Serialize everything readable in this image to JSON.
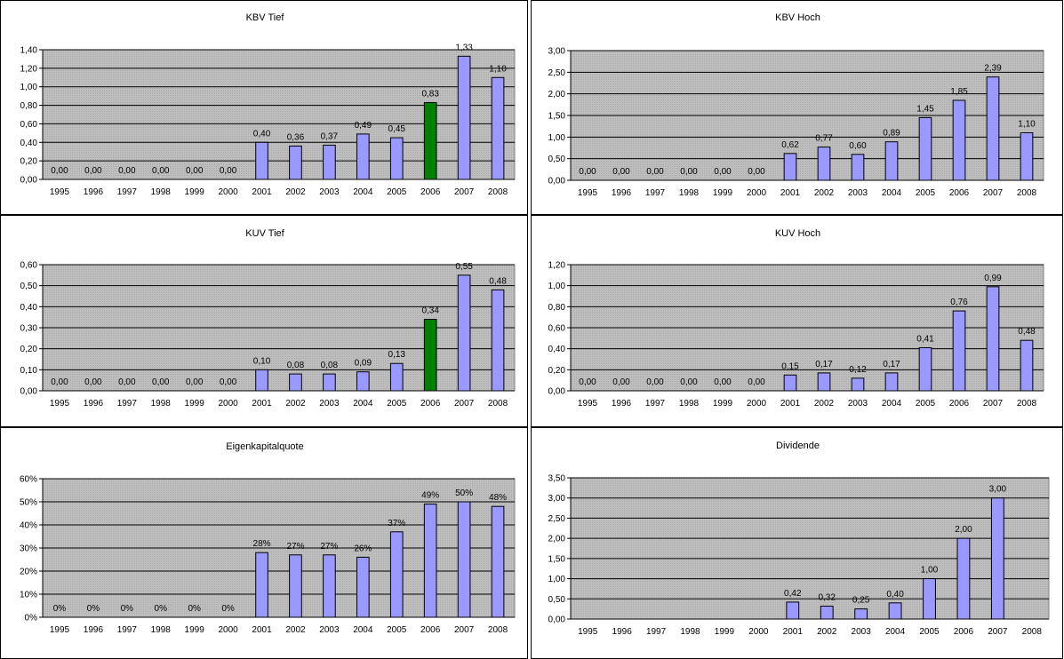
{
  "colors": {
    "bar": "#9999ff",
    "highlight": "#008000",
    "plot_bg": "#c0c0c0",
    "grid": "#000000"
  },
  "chart_data": [
    {
      "type": "bar",
      "title": "KBV Tief",
      "categories": [
        "1995",
        "1996",
        "1997",
        "1998",
        "1999",
        "2000",
        "2001",
        "2002",
        "2003",
        "2004",
        "2005",
        "2006",
        "2007",
        "2008"
      ],
      "values": [
        0,
        0,
        0,
        0,
        0,
        0,
        0.4,
        0.36,
        0.37,
        0.49,
        0.45,
        0.83,
        1.33,
        1.1
      ],
      "labels": [
        "0,00",
        "0,00",
        "0,00",
        "0,00",
        "0,00",
        "0,00",
        "0,40",
        "0,36",
        "0,37",
        "0,49",
        "0,45",
        "0,83",
        "1,33",
        "1,10"
      ],
      "highlight_index": 11,
      "ylim": [
        0,
        1.4
      ],
      "yticks": [
        "0,00",
        "0,20",
        "0,40",
        "0,60",
        "0,80",
        "1,00",
        "1,20",
        "1,40"
      ],
      "xlabel": "",
      "ylabel": "",
      "grid": true
    },
    {
      "type": "bar",
      "title": "KBV Hoch",
      "categories": [
        "1995",
        "1996",
        "1997",
        "1998",
        "1999",
        "2000",
        "2001",
        "2002",
        "2003",
        "2004",
        "2005",
        "2006",
        "2007",
        "2008"
      ],
      "values": [
        0,
        0,
        0,
        0,
        0,
        0,
        0.62,
        0.77,
        0.6,
        0.89,
        1.45,
        1.85,
        2.39,
        1.1
      ],
      "labels": [
        "0,00",
        "0,00",
        "0,00",
        "0,00",
        "0,00",
        "0,00",
        "0,62",
        "0,77",
        "0,60",
        "0,89",
        "1,45",
        "1,85",
        "2,39",
        "1,10"
      ],
      "highlight_index": -1,
      "ylim": [
        0,
        3
      ],
      "yticks": [
        "0,00",
        "0,50",
        "1,00",
        "1,50",
        "2,00",
        "2,50",
        "3,00"
      ],
      "xlabel": "",
      "ylabel": "",
      "grid": true
    },
    {
      "type": "bar",
      "title": "KUV Tief",
      "categories": [
        "1995",
        "1996",
        "1997",
        "1998",
        "1999",
        "2000",
        "2001",
        "2002",
        "2003",
        "2004",
        "2005",
        "2006",
        "2007",
        "2008"
      ],
      "values": [
        0,
        0,
        0,
        0,
        0,
        0,
        0.1,
        0.08,
        0.08,
        0.09,
        0.13,
        0.34,
        0.55,
        0.48
      ],
      "labels": [
        "0,00",
        "0,00",
        "0,00",
        "0,00",
        "0,00",
        "0,00",
        "0,10",
        "0,08",
        "0,08",
        "0,09",
        "0,13",
        "0,34",
        "0,55",
        "0,48"
      ],
      "highlight_index": 11,
      "ylim": [
        0,
        0.6
      ],
      "yticks": [
        "0,00",
        "0,10",
        "0,20",
        "0,30",
        "0,40",
        "0,50",
        "0,60"
      ],
      "xlabel": "",
      "ylabel": "",
      "grid": true
    },
    {
      "type": "bar",
      "title": "KUV Hoch",
      "categories": [
        "1995",
        "1996",
        "1997",
        "1998",
        "1999",
        "2000",
        "2001",
        "2002",
        "2003",
        "2004",
        "2005",
        "2006",
        "2007",
        "2008"
      ],
      "values": [
        0,
        0,
        0,
        0,
        0,
        0,
        0.15,
        0.17,
        0.12,
        0.17,
        0.41,
        0.76,
        0.99,
        0.48
      ],
      "labels": [
        "0,00",
        "0,00",
        "0,00",
        "0,00",
        "0,00",
        "0,00",
        "0,15",
        "0,17",
        "0,12",
        "0,17",
        "0,41",
        "0,76",
        "0,99",
        "0,48"
      ],
      "highlight_index": -1,
      "ylim": [
        0,
        1.2
      ],
      "yticks": [
        "0,00",
        "0,20",
        "0,40",
        "0,60",
        "0,80",
        "1,00",
        "1,20"
      ],
      "xlabel": "",
      "ylabel": "",
      "grid": true
    },
    {
      "type": "bar",
      "title": "Eigenkapitalquote",
      "categories": [
        "1995",
        "1996",
        "1997",
        "1998",
        "1999",
        "2000",
        "2001",
        "2002",
        "2003",
        "2004",
        "2005",
        "2006",
        "2007",
        "2008"
      ],
      "values": [
        0,
        0,
        0,
        0,
        0,
        0,
        28,
        27,
        27,
        26,
        37,
        49,
        50,
        48
      ],
      "labels": [
        "0%",
        "0%",
        "0%",
        "0%",
        "0%",
        "0%",
        "28%",
        "27%",
        "27%",
        "26%",
        "37%",
        "49%",
        "50%",
        "48%"
      ],
      "highlight_index": -1,
      "ylim": [
        0,
        60
      ],
      "yticks": [
        "0%",
        "10%",
        "20%",
        "30%",
        "40%",
        "50%",
        "60%"
      ],
      "xlabel": "",
      "ylabel": "",
      "grid": true
    },
    {
      "type": "bar",
      "title": "Dividende",
      "categories": [
        "1995",
        "1996",
        "1997",
        "1998",
        "1999",
        "2000",
        "2001",
        "2002",
        "2003",
        "2004",
        "2005",
        "2006",
        "2007",
        "2008"
      ],
      "values": [
        null,
        null,
        null,
        null,
        null,
        null,
        0.42,
        0.32,
        0.25,
        0.4,
        1.0,
        2.0,
        3.0,
        null
      ],
      "labels": [
        "",
        "",
        "",
        "",
        "",
        "",
        "0,42",
        "0,32",
        "0,25",
        "0,40",
        "1,00",
        "2,00",
        "3,00",
        ""
      ],
      "highlight_index": -1,
      "ylim": [
        0,
        3.5
      ],
      "yticks": [
        "0,00",
        "0,50",
        "1,00",
        "1,50",
        "2,00",
        "2,50",
        "3,00",
        "3,50"
      ],
      "xlabel": "",
      "ylabel": "",
      "grid": true
    }
  ]
}
